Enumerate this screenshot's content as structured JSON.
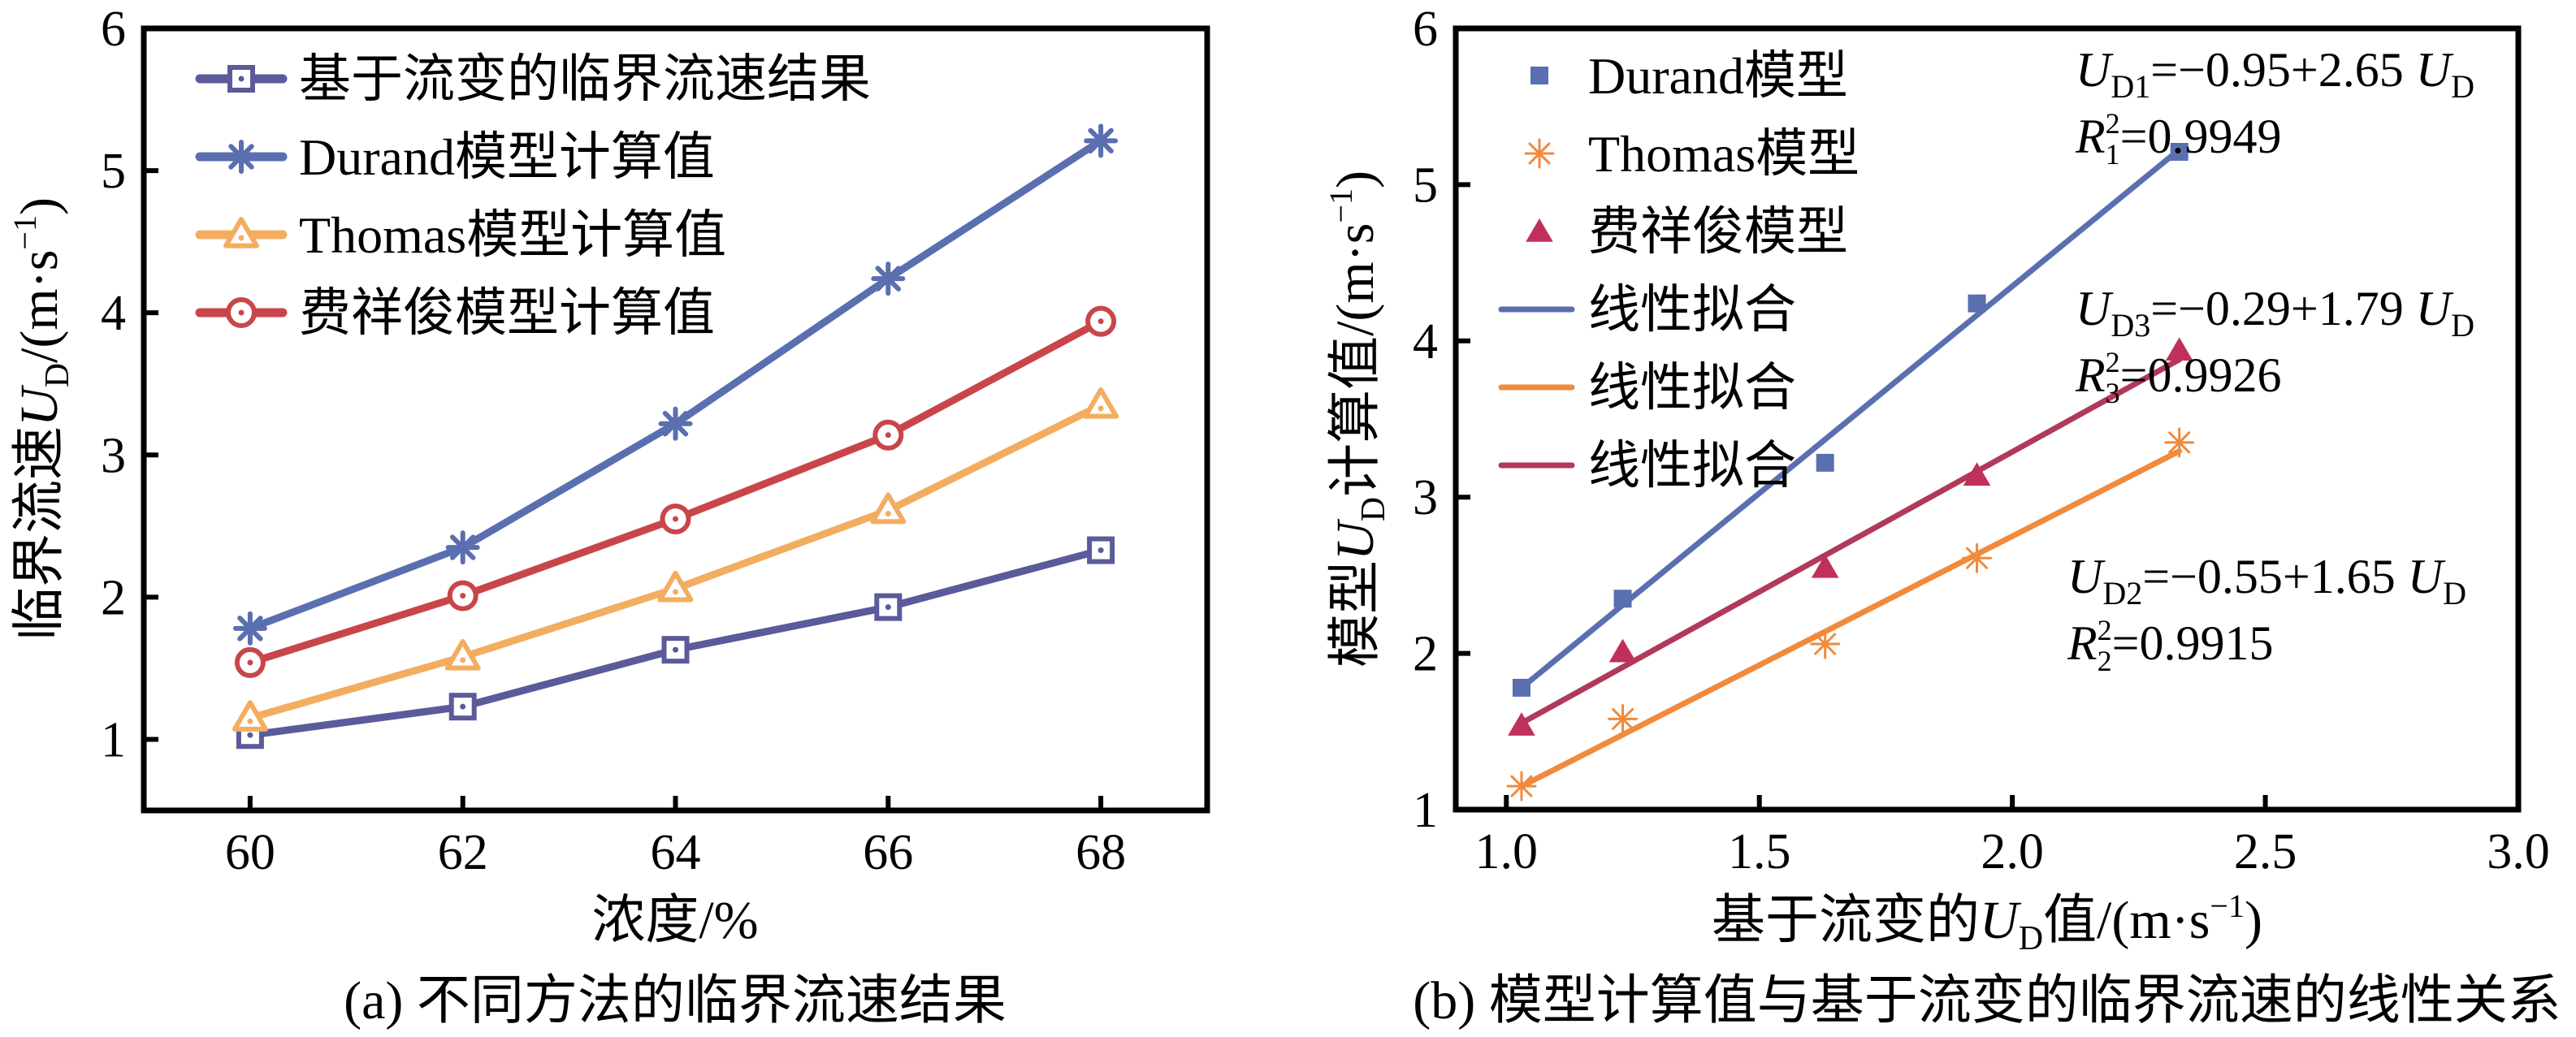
{
  "chart_data": [
    {
      "type": "line",
      "panel": "a",
      "caption": "(a) 不同方法的临界流速结果",
      "xlabel": "浓度/%",
      "ylabel_prefix": "临界流速",
      "ylabel_var": "U",
      "ylabel_sub": "D",
      "ylabel_unit": "/(m·s",
      "ylabel_sup": "−1",
      "ylabel_close": ")",
      "xlim": [
        59,
        69
      ],
      "ylim": [
        0.5,
        6
      ],
      "x_ticks": [
        60,
        62,
        64,
        66,
        68
      ],
      "x_tick_labels": [
        "60",
        "62",
        "64",
        "66",
        "68"
      ],
      "y_ticks": [
        1,
        2,
        3,
        4,
        5,
        6
      ],
      "y_tick_labels": [
        "1",
        "2",
        "3",
        "4",
        "5",
        "6"
      ],
      "legend_position": "top-left",
      "x": [
        60,
        62,
        64,
        66,
        68
      ],
      "series": [
        {
          "name": "基于流变的临界流速结果",
          "marker": "square-open",
          "color": "#5b5a9a",
          "values": [
            1.03,
            1.23,
            1.63,
            1.93,
            2.33
          ]
        },
        {
          "name": "Durand模型计算值",
          "marker": "asterisk",
          "color": "#5a6fb0",
          "values": [
            1.78,
            2.35,
            3.22,
            4.24,
            5.21
          ]
        },
        {
          "name": "Thomas模型计算值",
          "marker": "triangle-open",
          "color": "#f3ad60",
          "values": [
            1.15,
            1.58,
            2.06,
            2.61,
            3.35
          ]
        },
        {
          "name": "费祥俊模型计算值",
          "marker": "circle-open",
          "color": "#c8464a",
          "values": [
            1.54,
            2.01,
            2.55,
            3.14,
            3.94
          ]
        }
      ]
    },
    {
      "type": "scatter",
      "panel": "b",
      "caption": "(b) 模型计算值与基于流变的临界流速的线性关系",
      "xlabel_prefix": "基于流变的",
      "xlabel_var": "U",
      "xlabel_sub": "D",
      "xlabel_suffix": "值/(m·s",
      "xlabel_sup": "−1",
      "xlabel_close": ")",
      "ylabel_prefix": "模型",
      "ylabel_var": "U",
      "ylabel_sub": "D",
      "ylabel_suffix": "计算值/(m·s",
      "ylabel_sup": "−1",
      "ylabel_close": ")",
      "xlim": [
        0.9,
        3.0
      ],
      "ylim": [
        1,
        6
      ],
      "x_ticks": [
        1.0,
        1.5,
        2.0,
        2.5,
        3.0
      ],
      "x_tick_labels": [
        "1.0",
        "1.5",
        "2.0",
        "2.5",
        "3.0"
      ],
      "y_ticks": [
        1,
        2,
        3,
        4,
        5,
        6
      ],
      "y_tick_labels": [
        "1",
        "2",
        "3",
        "4",
        "5",
        "6"
      ],
      "legend_position": "top-left",
      "x": [
        1.03,
        1.23,
        1.63,
        1.93,
        2.33
      ],
      "series": [
        {
          "name": "Durand模型",
          "marker": "square-filled",
          "color": "#5a6fb0",
          "values": [
            1.78,
            2.35,
            3.22,
            4.24,
            5.21
          ]
        },
        {
          "name": "Thomas模型",
          "marker": "asterisk-thin",
          "color": "#f08a3c",
          "values": [
            1.15,
            1.58,
            2.06,
            2.61,
            3.35
          ]
        },
        {
          "name": "费祥俊模型",
          "marker": "triangle-filled",
          "color": "#c0305a",
          "values": [
            1.54,
            2.01,
            2.55,
            3.14,
            3.94
          ]
        }
      ],
      "fits": [
        {
          "name": "线性拟合",
          "color": "#5a6fb0",
          "intercept": -0.95,
          "slope": 2.65,
          "x_range": [
            1.03,
            2.33
          ],
          "eq_lhs_var": "U",
          "eq_lhs_sub": "D1",
          "eq_rhs": "=−0.95+2.65 ",
          "eq_rhs_var": "U",
          "eq_rhs_sub": "D",
          "r2_var": "R",
          "r2_sup": "2",
          "r2_sub": "1",
          "r2_value": "=0.9949"
        },
        {
          "name": "线性拟合",
          "color": "#f08a3c",
          "intercept": -0.55,
          "slope": 1.65,
          "x_range": [
            1.03,
            2.33
          ],
          "eq_lhs_var": "U",
          "eq_lhs_sub": "D2",
          "eq_rhs": "=−0.55+1.65 ",
          "eq_rhs_var": "U",
          "eq_rhs_sub": "D",
          "r2_var": "R",
          "r2_sup": "2",
          "r2_sub": "2",
          "r2_value": "=0.9915"
        },
        {
          "name": "线性拟合",
          "color": "#b03a5a",
          "intercept": -0.29,
          "slope": 1.79,
          "x_range": [
            1.03,
            2.33
          ],
          "eq_lhs_var": "U",
          "eq_lhs_sub": "D3",
          "eq_rhs": "=−0.29+1.79 ",
          "eq_rhs_var": "U",
          "eq_rhs_sub": "D",
          "r2_var": "R",
          "r2_sup": "2",
          "r2_sub": "3",
          "r2_value": "=0.9926"
        }
      ]
    }
  ]
}
